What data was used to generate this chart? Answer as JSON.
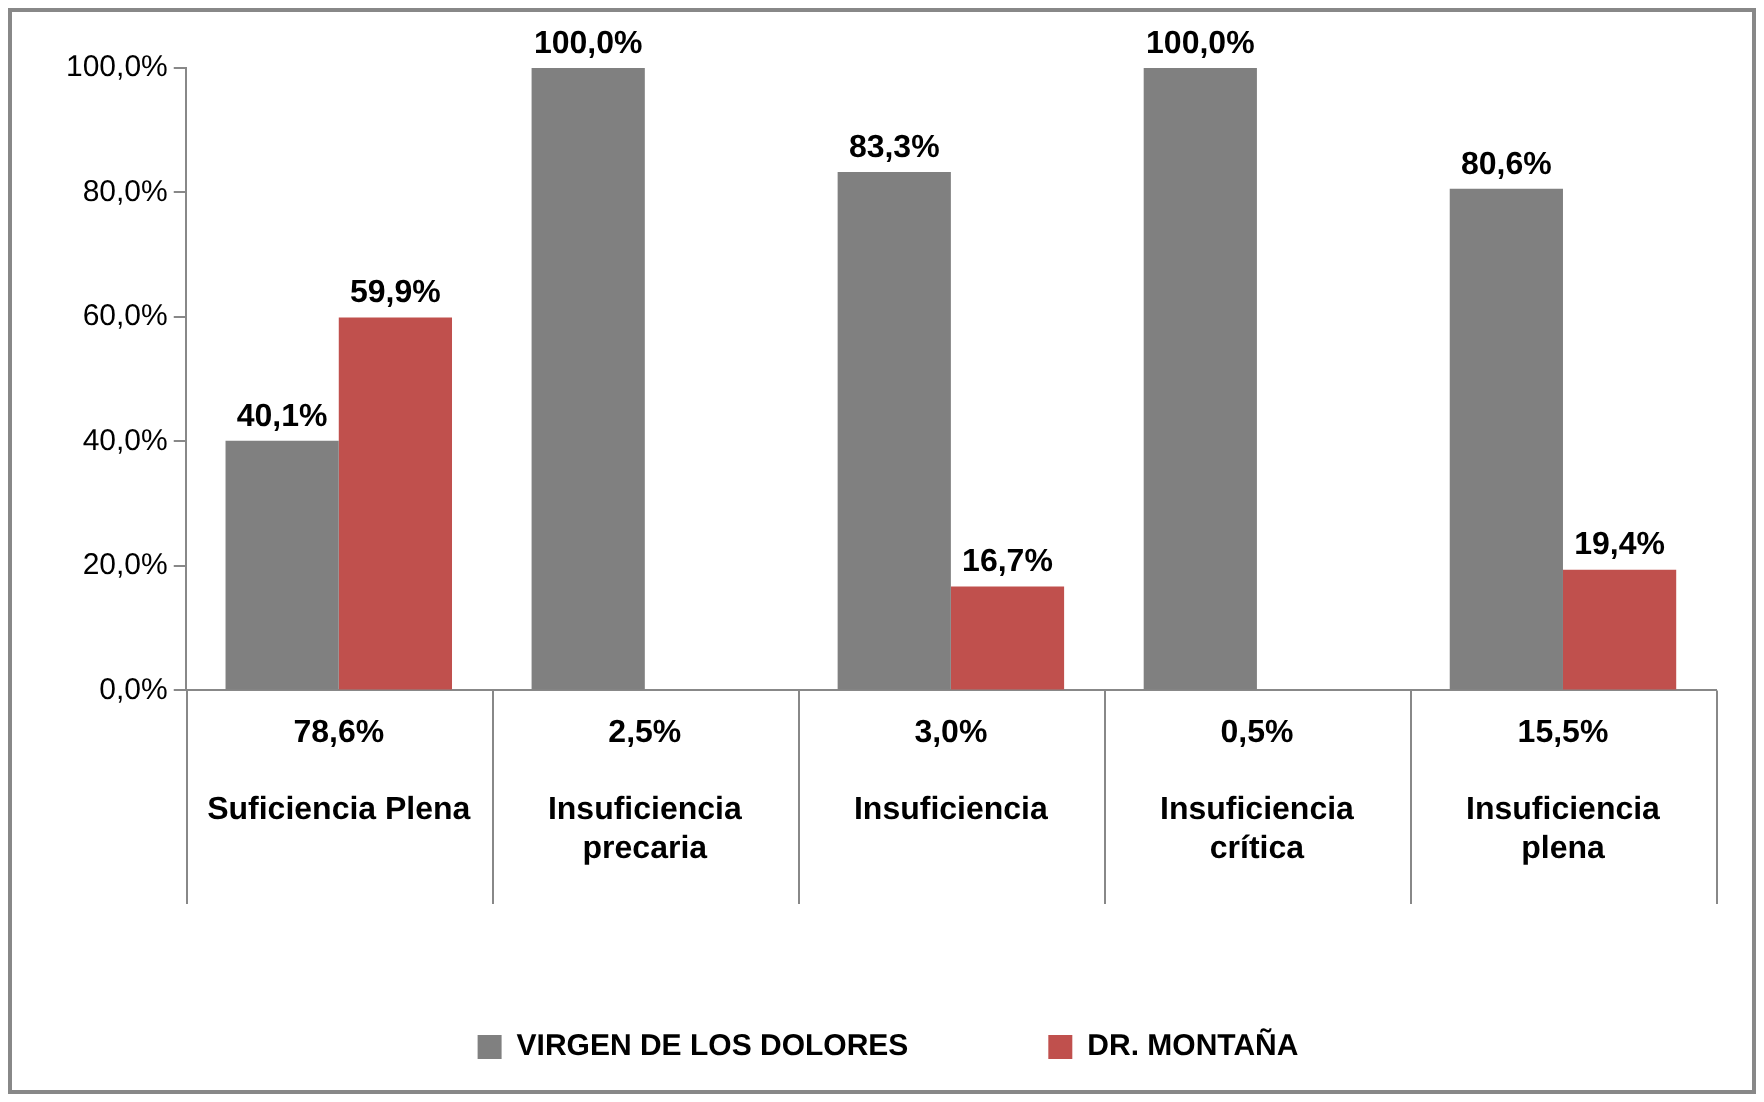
{
  "chart_data": {
    "type": "bar",
    "categories": [
      "Suficiencia Plena",
      "Insuficiencia precaria",
      "Insuficiencia",
      "Insuficiencia crítica",
      "Insuficiencia plena"
    ],
    "series": [
      {
        "name": "VIRGEN DE LOS DOLORES",
        "color": "#808080",
        "values": [
          40.1,
          100,
          83.3,
          100,
          80.6
        ],
        "value_labels": [
          "40,1%",
          "100,0%",
          "83,3%",
          "100,0%",
          "80,6%"
        ]
      },
      {
        "name": "DR. MONTAÑA",
        "color": "#c0504d",
        "values": [
          59.9,
          null,
          16.7,
          null,
          19.4
        ],
        "value_labels": [
          "59,9%",
          null,
          "16,7%",
          null,
          "19,4%"
        ]
      }
    ],
    "annotations": [
      "78,6%",
      "2,5%",
      "3,0%",
      "0,5%",
      "15,5%"
    ],
    "ylim": [
      0,
      100
    ],
    "yticks": [
      {
        "value": 0,
        "label": "0,0%"
      },
      {
        "value": 20,
        "label": "20,0%"
      },
      {
        "value": 40,
        "label": "40,0%"
      },
      {
        "value": 60,
        "label": "60,0%"
      },
      {
        "value": 80,
        "label": "80,0%"
      },
      {
        "value": 100,
        "label": "100,0%"
      }
    ],
    "grid": false,
    "legend": "bottom"
  }
}
